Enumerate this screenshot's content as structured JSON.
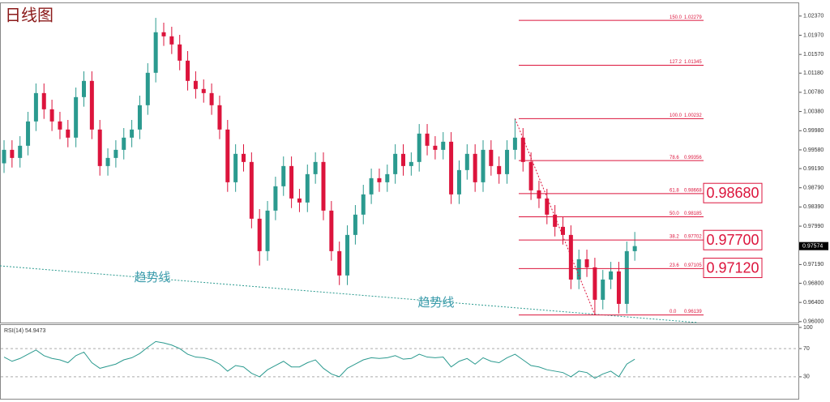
{
  "chart_data": [
    {
      "type": "candlestick",
      "title": "日线图",
      "up_color": "#2b9a8f",
      "down_color": "#dc143c",
      "ylim": [
        0.9598,
        1.0262
      ],
      "yticks": [
        {
          "value": 1.0237,
          "label": "1.02370"
        },
        {
          "value": 1.0197,
          "label": "1.01970"
        },
        {
          "value": 1.0157,
          "label": "1.01570"
        },
        {
          "value": 1.0118,
          "label": "1.01180"
        },
        {
          "value": 1.0078,
          "label": "1.00780"
        },
        {
          "value": 1.0038,
          "label": "1.00380"
        },
        {
          "value": 0.9998,
          "label": "0.99980"
        },
        {
          "value": 0.9958,
          "label": "0.99580"
        },
        {
          "value": 0.9919,
          "label": "0.99190"
        },
        {
          "value": 0.9879,
          "label": "0.98790"
        },
        {
          "value": 0.9839,
          "label": "0.98390"
        },
        {
          "value": 0.9799,
          "label": "0.97990"
        },
        {
          "value": 0.9719,
          "label": "0.97190"
        },
        {
          "value": 0.968,
          "label": "0.96800"
        },
        {
          "value": 0.964,
          "label": "0.96400"
        },
        {
          "value": 0.96,
          "label": "0.96000"
        }
      ],
      "current_price": 0.97574,
      "open": [
        0.993,
        0.99581,
        0.99412,
        0.99666,
        1.00173,
        1.00764,
        1.00426,
        1.00173,
        1.00004,
        0.99835,
        1.0068,
        1.01018,
        1.00004,
        0.99243,
        0.99412,
        0.99581,
        0.99835,
        1.00004,
        1.00511,
        1.01187,
        1.02032,
        1.01947,
        1.01778,
        1.0144,
        1.01018,
        1.00849,
        1.00764,
        1.00511,
        1.00004,
        0.98905,
        0.99497,
        0.99328,
        0.98145,
        0.97469,
        0.98314,
        0.98821,
        0.99243,
        0.98567,
        0.98483,
        0.99074,
        0.99328,
        0.98314,
        0.97469,
        0.96962,
        0.97807,
        0.9823,
        0.98652,
        0.9899,
        0.98905,
        0.99074,
        0.99497,
        0.99243,
        0.99328,
        0.99919,
        0.99666,
        0.99581,
        0.9975,
        0.98652,
        0.99159,
        0.99497,
        0.98905,
        0.99581,
        0.99243,
        0.99074,
        0.99581,
        0.99835,
        0.99328,
        0.98736,
        0.98567,
        0.9823,
        0.97976,
        0.97807,
        0.96877,
        0.973,
        0.97131,
        0.96455,
        0.96877,
        0.97046,
        0.9637,
        0.97469
      ],
      "high": [
        0.99781,
        0.99781,
        0.99866,
        1.00373,
        1.00964,
        1.00964,
        1.00626,
        1.00373,
        1.00204,
        1.0088,
        1.01218,
        1.01218,
        1.00204,
        0.99612,
        0.99781,
        1.00035,
        1.00204,
        1.00711,
        1.01387,
        1.02332,
        1.02232,
        1.02147,
        1.01978,
        1.0164,
        1.01218,
        1.01049,
        1.00964,
        1.00711,
        1.00204,
        0.99697,
        0.99697,
        0.99528,
        0.98345,
        0.98514,
        0.99021,
        0.99443,
        0.99443,
        0.98767,
        0.99274,
        0.99528,
        0.99528,
        0.98514,
        0.97669,
        0.98007,
        0.9843,
        0.98852,
        0.9919,
        0.9919,
        0.99274,
        0.99697,
        0.99697,
        0.99528,
        1.00119,
        1.00119,
        0.99866,
        0.9995,
        0.9995,
        0.99359,
        0.99697,
        0.99697,
        0.99781,
        0.99781,
        0.99443,
        0.99781,
        1.00232,
        1.00035,
        0.99528,
        0.98936,
        0.98767,
        0.9843,
        0.98176,
        0.98007,
        0.975,
        0.975,
        0.97331,
        0.97077,
        0.97246,
        0.97246,
        0.97669,
        0.97869
      ],
      "low": [
        0.991,
        0.99212,
        0.99212,
        0.99466,
        0.99973,
        1.00226,
        0.99973,
        0.99804,
        0.99635,
        0.99635,
        1.0048,
        0.99804,
        0.99043,
        0.99043,
        0.99212,
        0.99381,
        0.99635,
        0.99804,
        1.00311,
        1.00987,
        1.01747,
        1.01578,
        1.0124,
        1.00818,
        1.00649,
        1.00564,
        1.00311,
        0.99804,
        0.98705,
        0.98705,
        0.99128,
        0.97945,
        0.97169,
        0.97269,
        0.98114,
        0.98621,
        0.98367,
        0.98283,
        0.98283,
        0.98874,
        0.98114,
        0.97269,
        0.96762,
        0.96762,
        0.97607,
        0.9803,
        0.98452,
        0.98705,
        0.98705,
        0.98874,
        0.99043,
        0.99043,
        0.99128,
        0.99466,
        0.99381,
        0.99381,
        0.98452,
        0.98452,
        0.98959,
        0.98705,
        0.98705,
        0.99043,
        0.98874,
        0.98874,
        0.99381,
        0.99128,
        0.98536,
        0.98367,
        0.9803,
        0.97776,
        0.97607,
        0.96677,
        0.96677,
        0.96931,
        0.96139,
        0.96255,
        0.96677,
        0.9617,
        0.9617,
        0.97269
      ],
      "close": [
        0.99581,
        0.99412,
        0.99666,
        1.00173,
        1.00764,
        1.00426,
        1.00173,
        1.00004,
        0.99835,
        1.0068,
        1.01018,
        1.00004,
        0.99243,
        0.99412,
        0.99581,
        0.99835,
        1.00004,
        1.00511,
        1.01187,
        1.02032,
        1.01947,
        1.01778,
        1.0144,
        1.01018,
        1.00849,
        1.00764,
        1.00511,
        1.00004,
        0.98905,
        0.99497,
        0.99328,
        0.98145,
        0.97469,
        0.98314,
        0.98821,
        0.99243,
        0.98567,
        0.98483,
        0.99074,
        0.99328,
        0.98314,
        0.97469,
        0.96962,
        0.97807,
        0.9823,
        0.98652,
        0.9899,
        0.98905,
        0.99074,
        0.99497,
        0.99243,
        0.99328,
        0.99919,
        0.99666,
        0.99581,
        0.9975,
        0.98652,
        0.99159,
        0.99497,
        0.98905,
        0.99581,
        0.99243,
        0.99074,
        0.99581,
        0.99835,
        0.99328,
        0.98736,
        0.98567,
        0.9823,
        0.97976,
        0.97807,
        0.96877,
        0.973,
        0.97131,
        0.96455,
        0.96877,
        0.97046,
        0.9637,
        0.97469,
        0.97574
      ],
      "fibonacci": {
        "color": "#dc143c",
        "levels": [
          {
            "level": "150.0",
            "price": 1.02279
          },
          {
            "level": "127.2",
            "price": 1.01345
          },
          {
            "level": "100.0",
            "price": 1.00232
          },
          {
            "level": "78.6",
            "price": 0.99356
          },
          {
            "level": "61.8",
            "price": 0.98668
          },
          {
            "level": "50.0",
            "price": 0.98185
          },
          {
            "level": "38.2",
            "price": 0.97702
          },
          {
            "level": "23.6",
            "price": 0.97105
          },
          {
            "level": "0.0",
            "price": 0.96139
          }
        ]
      },
      "callouts": [
        {
          "value": 0.9868,
          "label": "0.98680"
        },
        {
          "value": 0.977,
          "label": "0.97700"
        },
        {
          "value": 0.9712,
          "label": "0.97120"
        }
      ],
      "annotations": [
        "趋势线",
        "趋势线"
      ]
    },
    {
      "type": "line",
      "title": "RSI(14) 54.9473",
      "color": "#2b9a8f",
      "ylim": [
        0,
        100
      ],
      "yticks": [
        100,
        70,
        30
      ],
      "levels": [
        70,
        30
      ],
      "values": [
        58,
        52,
        56,
        62,
        68,
        60,
        56,
        54,
        50,
        60,
        65,
        50,
        42,
        45,
        48,
        54,
        57,
        63,
        72,
        80,
        78,
        75,
        70,
        62,
        58,
        57,
        54,
        48,
        38,
        46,
        44,
        35,
        30,
        40,
        46,
        52,
        44,
        44,
        50,
        54,
        42,
        34,
        30,
        42,
        48,
        54,
        57,
        56,
        57,
        60,
        55,
        56,
        62,
        58,
        57,
        58,
        44,
        52,
        56,
        48,
        57,
        52,
        50,
        57,
        62,
        54,
        46,
        44,
        40,
        38,
        36,
        30,
        38,
        36,
        28,
        34,
        38,
        30,
        48,
        54.9473
      ]
    }
  ]
}
